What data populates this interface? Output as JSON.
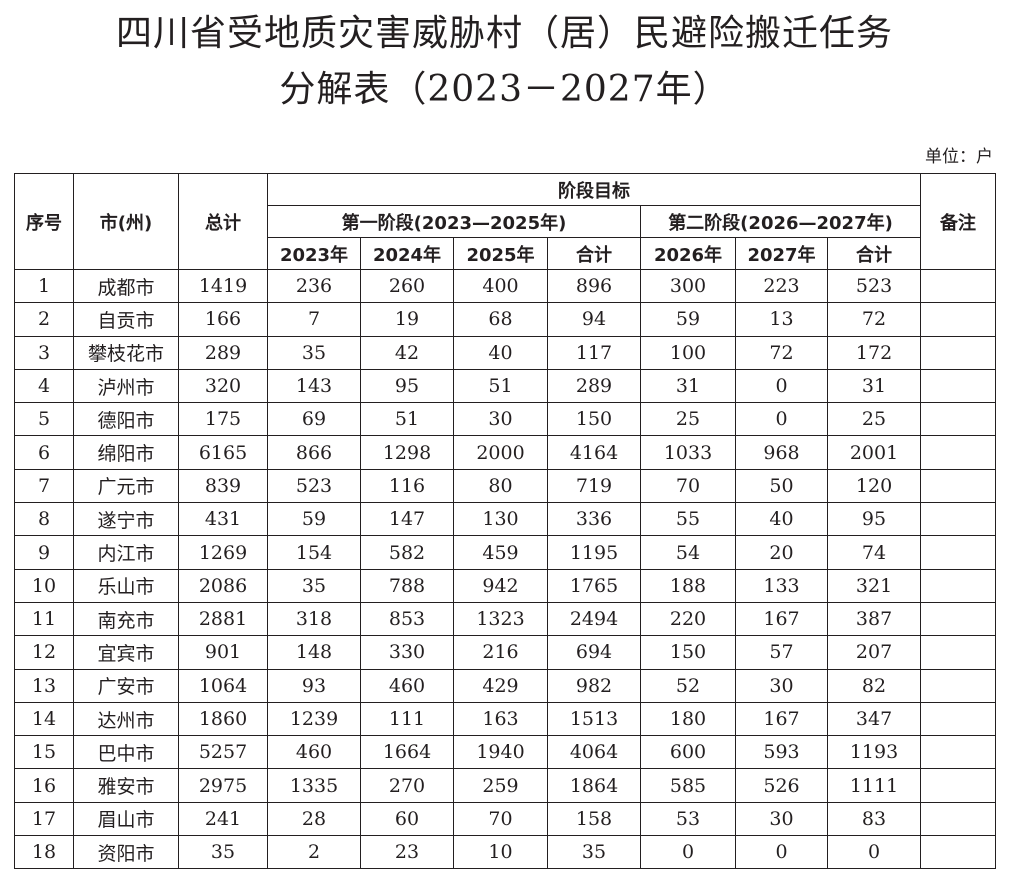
{
  "header": {
    "title": [
      "四川省受地质灾害威胁村（居）民避险搬迁任务",
      "分解表（2023－2027年）"
    ],
    "unit": "单位：户"
  },
  "table": {
    "columns": {
      "serial": "序号",
      "city": "市(州)",
      "total": "总计",
      "goal": "阶段目标",
      "phase1": "第一阶段(2023—2025年)",
      "phase2": "第二阶段(2026—2027年)",
      "note": "备注",
      "years": [
        "2023年",
        "2024年",
        "2025年",
        "合计",
        "2026年",
        "2027年",
        "合计"
      ]
    },
    "rows": [
      [
        1,
        "成都市",
        1419,
        236,
        260,
        400,
        896,
        300,
        223,
        523
      ],
      [
        2,
        "自贡市",
        166,
        7,
        19,
        68,
        94,
        59,
        13,
        72
      ],
      [
        3,
        "攀枝花市",
        289,
        35,
        42,
        40,
        117,
        100,
        72,
        172
      ],
      [
        4,
        "泸州市",
        320,
        143,
        95,
        51,
        289,
        31,
        0,
        31
      ],
      [
        5,
        "德阳市",
        175,
        69,
        51,
        30,
        150,
        25,
        0,
        25
      ],
      [
        6,
        "绵阳市",
        6165,
        866,
        1298,
        2000,
        4164,
        1033,
        968,
        2001
      ],
      [
        7,
        "广元市",
        839,
        523,
        116,
        80,
        719,
        70,
        50,
        120
      ],
      [
        8,
        "遂宁市",
        431,
        59,
        147,
        130,
        336,
        55,
        40,
        95
      ],
      [
        9,
        "内江市",
        1269,
        154,
        582,
        459,
        1195,
        54,
        20,
        74
      ],
      [
        10,
        "乐山市",
        2086,
        35,
        788,
        942,
        1765,
        188,
        133,
        321
      ],
      [
        11,
        "南充市",
        2881,
        318,
        853,
        1323,
        2494,
        220,
        167,
        387
      ],
      [
        12,
        "宜宾市",
        901,
        148,
        330,
        216,
        694,
        150,
        57,
        207
      ],
      [
        13,
        "广安市",
        1064,
        93,
        460,
        429,
        982,
        52,
        30,
        82
      ],
      [
        14,
        "达州市",
        1860,
        1239,
        111,
        163,
        1513,
        180,
        167,
        347
      ],
      [
        15,
        "巴中市",
        5257,
        460,
        1664,
        1940,
        4064,
        600,
        593,
        1193
      ],
      [
        16,
        "雅安市",
        2975,
        1335,
        270,
        259,
        1864,
        585,
        526,
        1111
      ],
      [
        17,
        "眉山市",
        241,
        28,
        60,
        70,
        158,
        53,
        30,
        83
      ],
      [
        18,
        "资阳市",
        35,
        2,
        23,
        10,
        35,
        0,
        0,
        0
      ]
    ]
  }
}
